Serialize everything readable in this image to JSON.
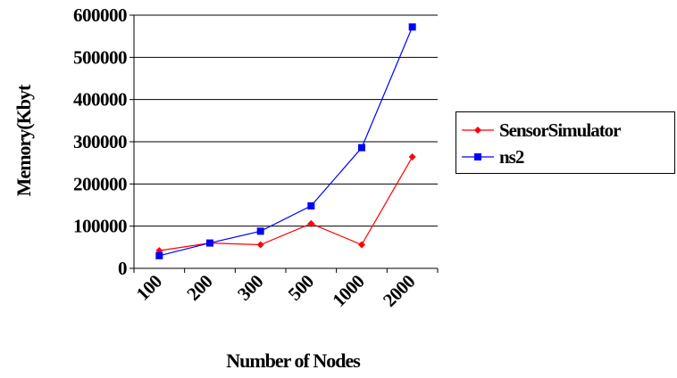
{
  "chart_data": {
    "type": "line",
    "title": "",
    "xlabel": "Number of Nodes",
    "ylabel": "Memory(Kbyt",
    "categories": [
      "100",
      "200",
      "300",
      "500",
      "1000",
      "2000"
    ],
    "ylim": [
      0,
      600000
    ],
    "yticks": [
      "0",
      "100000",
      "200000",
      "300000",
      "400000",
      "500000",
      "600000"
    ],
    "grid": true,
    "legend_position": "right",
    "series": [
      {
        "name": "SensorSimulator",
        "color": "#ff0000",
        "marker": "diamond",
        "values": [
          42000,
          60000,
          56000,
          106000,
          56000,
          264000
        ]
      },
      {
        "name": "ns2",
        "color": "#0000ff",
        "marker": "square",
        "values": [
          30000,
          60000,
          88000,
          148000,
          286000,
          572000
        ]
      }
    ]
  }
}
